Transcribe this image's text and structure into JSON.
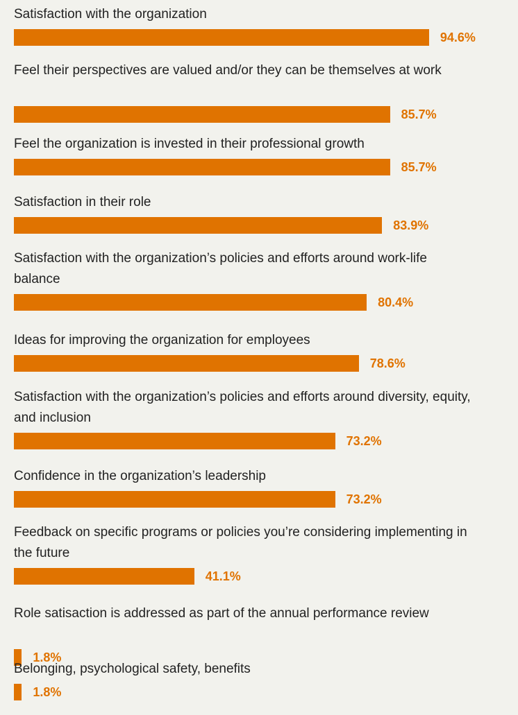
{
  "chart_data": {
    "type": "bar",
    "orientation": "horizontal",
    "bar_color": "#e07300",
    "value_color": "#e07300",
    "xlim": [
      0,
      100
    ],
    "categories": [
      "Satisfaction with the organization",
      "Feel their perspectives are valued and/or they can be themselves at work",
      "Feel the organization is invested in their professional growth",
      "Satisfaction in their role",
      "Satisfaction with the organization’s policies and efforts around work-life balance",
      "Ideas for improving the organization for employees",
      "Satisfaction with the organization’s policies and efforts around diversity, equity, and inclusion",
      "Confidence in the organization’s leadership",
      "Feedback on specific programs or policies you’re considering implementing in the future",
      "Role satisaction is addressed as part of the annual performance review",
      "Belonging, psychological safety, benefits"
    ],
    "values": [
      94.6,
      85.7,
      85.7,
      83.9,
      80.4,
      78.6,
      73.2,
      73.2,
      41.1,
      1.8,
      1.8
    ],
    "value_labels": [
      "94.6%",
      "85.7%",
      "85.7%",
      "83.9%",
      "80.4%",
      "78.6%",
      "73.2%",
      "73.2%",
      "41.1%",
      "1.8%",
      "1.8%"
    ]
  }
}
